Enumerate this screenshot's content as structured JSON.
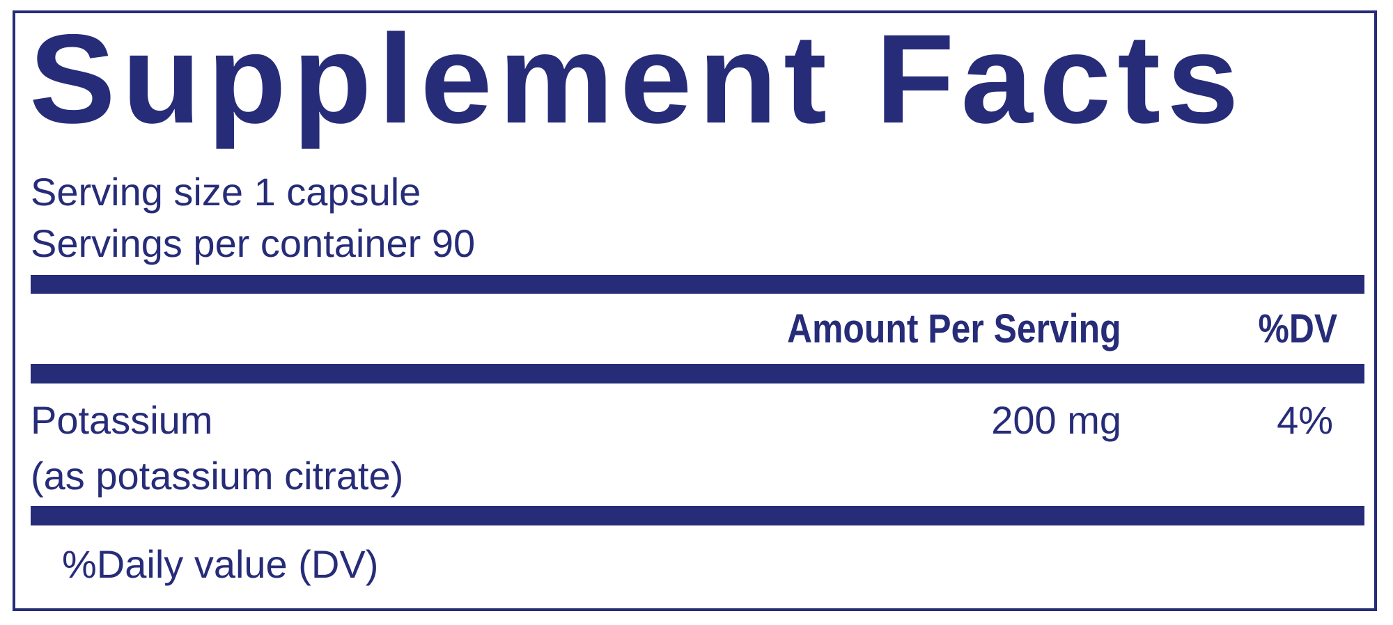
{
  "title": "Supplement Facts",
  "serving_size": "Serving size  1 capsule",
  "servings_per_container": "Servings per container  90",
  "columns": {
    "amount": "Amount Per Serving",
    "dv": "%DV"
  },
  "rows": [
    {
      "name": "Potassium",
      "detail": "(as potassium citrate)",
      "amount": "200 mg",
      "dv": "4%"
    }
  ],
  "footnote": "%Daily value (DV)",
  "colors": {
    "ink": "#262c78",
    "background": "#ffffff"
  }
}
